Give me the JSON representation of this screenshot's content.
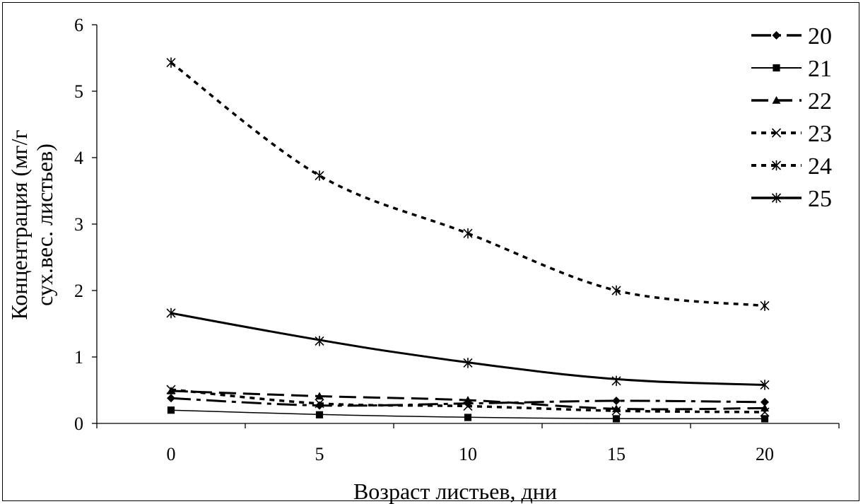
{
  "chart_data": {
    "type": "line",
    "title": "",
    "xlabel": "Возраст листьев, дни",
    "ylabel_lines": [
      "Концентрация (мг/г",
      "сух.вес. листьев)"
    ],
    "x": [
      0,
      5,
      10,
      15,
      20
    ],
    "x_tick_labels": [
      "0",
      "5",
      "10",
      "15",
      "20"
    ],
    "y_tick_labels": [
      "0",
      "1",
      "2",
      "3",
      "4",
      "5",
      "6"
    ],
    "ylim": [
      0,
      6
    ],
    "grid": false,
    "legend_position": "right",
    "series": [
      {
        "name": "20",
        "marker": "diamond",
        "dash": "long-dash-dot",
        "values": [
          0.38,
          0.27,
          0.3,
          0.34,
          0.32
        ]
      },
      {
        "name": "21",
        "marker": "square",
        "dash": "solid-thin",
        "values": [
          0.2,
          0.13,
          0.09,
          0.07,
          0.07
        ]
      },
      {
        "name": "22",
        "marker": "triangle",
        "dash": "long-dash",
        "values": [
          0.49,
          0.41,
          0.35,
          0.22,
          0.23
        ]
      },
      {
        "name": "23",
        "marker": "x",
        "dash": "dotted",
        "values": [
          0.51,
          0.3,
          0.26,
          0.19,
          0.17
        ]
      },
      {
        "name": "24",
        "marker": "star",
        "dash": "dotted",
        "values": [
          5.43,
          3.73,
          2.86,
          2.0,
          1.77
        ]
      },
      {
        "name": "25",
        "marker": "star",
        "dash": "solid",
        "values": [
          1.66,
          1.24,
          0.91,
          0.64,
          0.58
        ]
      }
    ]
  }
}
